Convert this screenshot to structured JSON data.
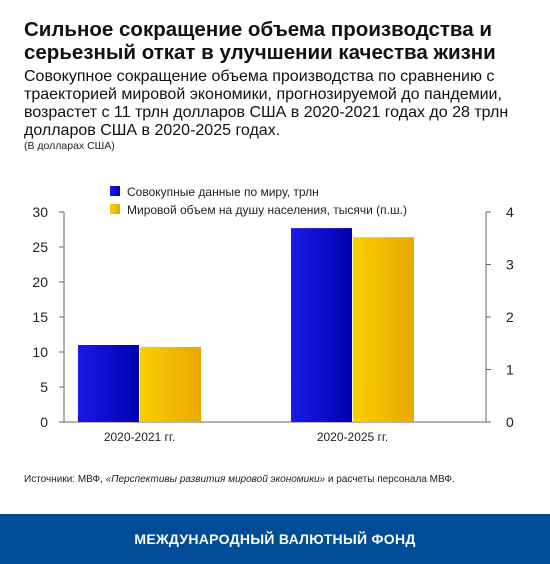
{
  "header": {
    "title": "Сильное сокращение объема производства и серьезный откат в улучшении качества жизни",
    "subtitle": "Совокупное сокращение объема производства по сравнению с траекторией мировой экономики, прогнозируемой до пандемии, возрастет с 11 трлн долларов США в 2020-2021 годах до 28 трлн долларов США в 2020-2025 годах.",
    "unit_note": "(В долларах США)"
  },
  "source": {
    "prefix": "Источники: МВФ, ",
    "italic": "«Перспективы развития мировой экономики»",
    "suffix": " и расчеты персонала МВФ."
  },
  "footer": {
    "label": "МЕЖДУНАРОДНЫЙ ВАЛЮТНЫЙ ФОНД"
  },
  "colors": {
    "series1": "#1010d8",
    "series2": "#f5c000",
    "footer_bg": "#004c97"
  },
  "chart_data": {
    "type": "bar",
    "categories": [
      "2020-2021 гг.",
      "2020-2025 гг."
    ],
    "series": [
      {
        "name": "Совокупные данные по миру, трлн",
        "axis": "left",
        "values": [
          11,
          27.7
        ]
      },
      {
        "name": "Мировой объем на душу населения, тысячи (п.ш.)",
        "axis": "right",
        "values": [
          1.43,
          3.52
        ]
      }
    ],
    "ylim_left": [
      0,
      30
    ],
    "yticks_left": [
      0,
      5,
      10,
      15,
      20,
      25,
      30
    ],
    "ylim_right": [
      0,
      4
    ],
    "yticks_right": [
      0,
      1,
      2,
      3,
      4
    ],
    "grid": false,
    "legend_position": "top-left"
  }
}
